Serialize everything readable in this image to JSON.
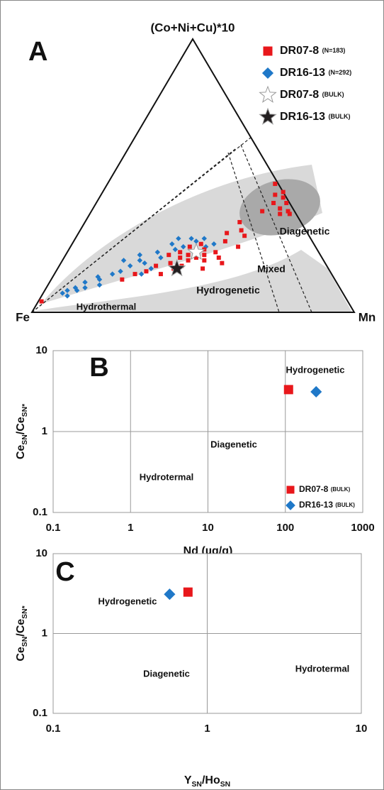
{
  "chart_data": [
    {
      "type": "ternary",
      "panel": "A",
      "apex_labels": {
        "top": "(Co+Ni+Cu)*10",
        "left": "Fe",
        "right": "Mn"
      },
      "series": [
        {
          "name": "DR07-8",
          "note": "(N=183)",
          "color": "#e8171b",
          "marker": "square",
          "mn": [
            38,
            40,
            36,
            42,
            39,
            35,
            41,
            37,
            43,
            34,
            44,
            38,
            32,
            46,
            40,
            36,
            30,
            48,
            33,
            28,
            50,
            45,
            25,
            22,
            52,
            47,
            1,
            55,
            57,
            58,
            59,
            56,
            59,
            61,
            53,
            54,
            62,
            50,
            48,
            52,
            46,
            52
          ],
          "cnc": [
            21,
            22,
            20,
            23,
            19,
            22,
            20,
            24,
            21,
            18,
            19,
            17,
            21,
            22,
            25,
            16,
            17,
            20,
            14,
            15,
            18,
            16,
            14,
            12,
            24,
            26,
            4,
            40,
            42,
            38,
            40,
            44,
            36,
            37,
            37,
            43,
            36,
            30,
            33,
            28,
            29,
            47
          ],
          "fe": [
            41,
            38,
            44,
            35,
            42,
            43,
            39,
            39,
            36,
            48,
            37,
            45,
            47,
            32,
            35,
            48,
            53,
            32,
            53,
            57,
            32,
            39,
            61,
            66,
            24,
            27,
            95,
            5,
            1,
            4,
            1,
            0,
            5,
            2,
            10,
            3,
            2,
            20,
            19,
            20,
            25,
            1
          ]
        },
        {
          "name": "DR16-13",
          "note": "(N=292)",
          "color": "#1f78c8",
          "marker": "diamond",
          "mn": [
            30,
            28,
            33,
            26,
            35,
            31,
            24,
            22,
            20,
            18,
            15,
            12,
            10,
            8,
            9,
            6,
            16,
            27,
            38,
            40,
            36,
            42,
            29,
            14,
            19,
            23,
            32,
            44,
            7,
            11
          ],
          "cnc": [
            20,
            22,
            23,
            18,
            24,
            25,
            19,
            17,
            15,
            14,
            12,
            9,
            8,
            6,
            9,
            7,
            10,
            14,
            26,
            27,
            27,
            24,
            16,
            13,
            19,
            21,
            27,
            25,
            8,
            11
          ],
          "fe": [
            50,
            50,
            44,
            56,
            41,
            44,
            57,
            61,
            65,
            68,
            73,
            79,
            82,
            86,
            82,
            87,
            74,
            59,
            36,
            33,
            37,
            34,
            55,
            73,
            62,
            56,
            41,
            31,
            85,
            78
          ]
        },
        {
          "name": "DR07-8",
          "note": "(BULK)",
          "color": "#ffffff",
          "marker": "star",
          "mn": [
            40
          ],
          "cnc": [
            22
          ],
          "fe": [
            38
          ]
        },
        {
          "name": "DR16-13",
          "note": "(BULK)",
          "color": "#231f20",
          "marker": "star",
          "mn": [
            37
          ],
          "cnc": [
            16
          ],
          "fe": [
            47
          ]
        }
      ],
      "annotations": [
        "Hydrothermal",
        "Diagenetic",
        "Mixed",
        "Hydrogenetic"
      ]
    },
    {
      "type": "scatter",
      "panel": "B",
      "log_x": true,
      "log_y": true,
      "grid": true,
      "xlabel": "Nd (µg/g)",
      "ylabel": [
        {
          "text": "Ce",
          "sub": false
        },
        {
          "text": "SN",
          "sub": true
        },
        {
          "text": "/Ce",
          "sub": false
        },
        {
          "text": "SN*",
          "sub": true
        }
      ],
      "xlim": [
        0.1,
        1000
      ],
      "xticks": [
        0.1,
        1,
        10,
        100,
        1000
      ],
      "ylim": [
        0.1,
        10
      ],
      "yticks": [
        0.1,
        1,
        10
      ],
      "series": [
        {
          "name": "DR07-8",
          "note": "(BULK)",
          "color": "#e8171b",
          "marker": "square",
          "x": [
            110
          ],
          "values": [
            3.3
          ]
        },
        {
          "name": "DR16-13",
          "note": "(BULK)",
          "color": "#1f78c8",
          "marker": "diamond",
          "x": [
            250
          ],
          "values": [
            3.1
          ]
        }
      ],
      "annotations": [
        "Hydrogenetic",
        "Diagenetic",
        "Hydrotermal"
      ]
    },
    {
      "type": "scatter",
      "panel": "C",
      "log_x": true,
      "log_y": true,
      "grid": true,
      "xlabel": [
        {
          "text": "Y",
          "sub": false
        },
        {
          "text": "SN",
          "sub": true
        },
        {
          "text": "/Ho",
          "sub": false
        },
        {
          "text": "SN",
          "sub": true
        }
      ],
      "ylabel": [
        {
          "text": "Ce",
          "sub": false
        },
        {
          "text": "SN",
          "sub": true
        },
        {
          "text": "/Ce",
          "sub": false
        },
        {
          "text": "SN*",
          "sub": true
        }
      ],
      "xlim": [
        0.1,
        10
      ],
      "xticks": [
        0.1,
        1,
        10
      ],
      "ylim": [
        0.1,
        10
      ],
      "yticks": [
        0.1,
        1,
        10
      ],
      "series": [
        {
          "color": "#e8171b",
          "marker": "square",
          "x": [
            0.75
          ],
          "values": [
            3.3
          ]
        },
        {
          "color": "#1f78c8",
          "marker": "diamond",
          "x": [
            0.57
          ],
          "values": [
            3.1
          ]
        }
      ],
      "annotations": [
        "Hydrogenetic",
        "Diagenetic",
        "Hydrotermal"
      ]
    }
  ]
}
